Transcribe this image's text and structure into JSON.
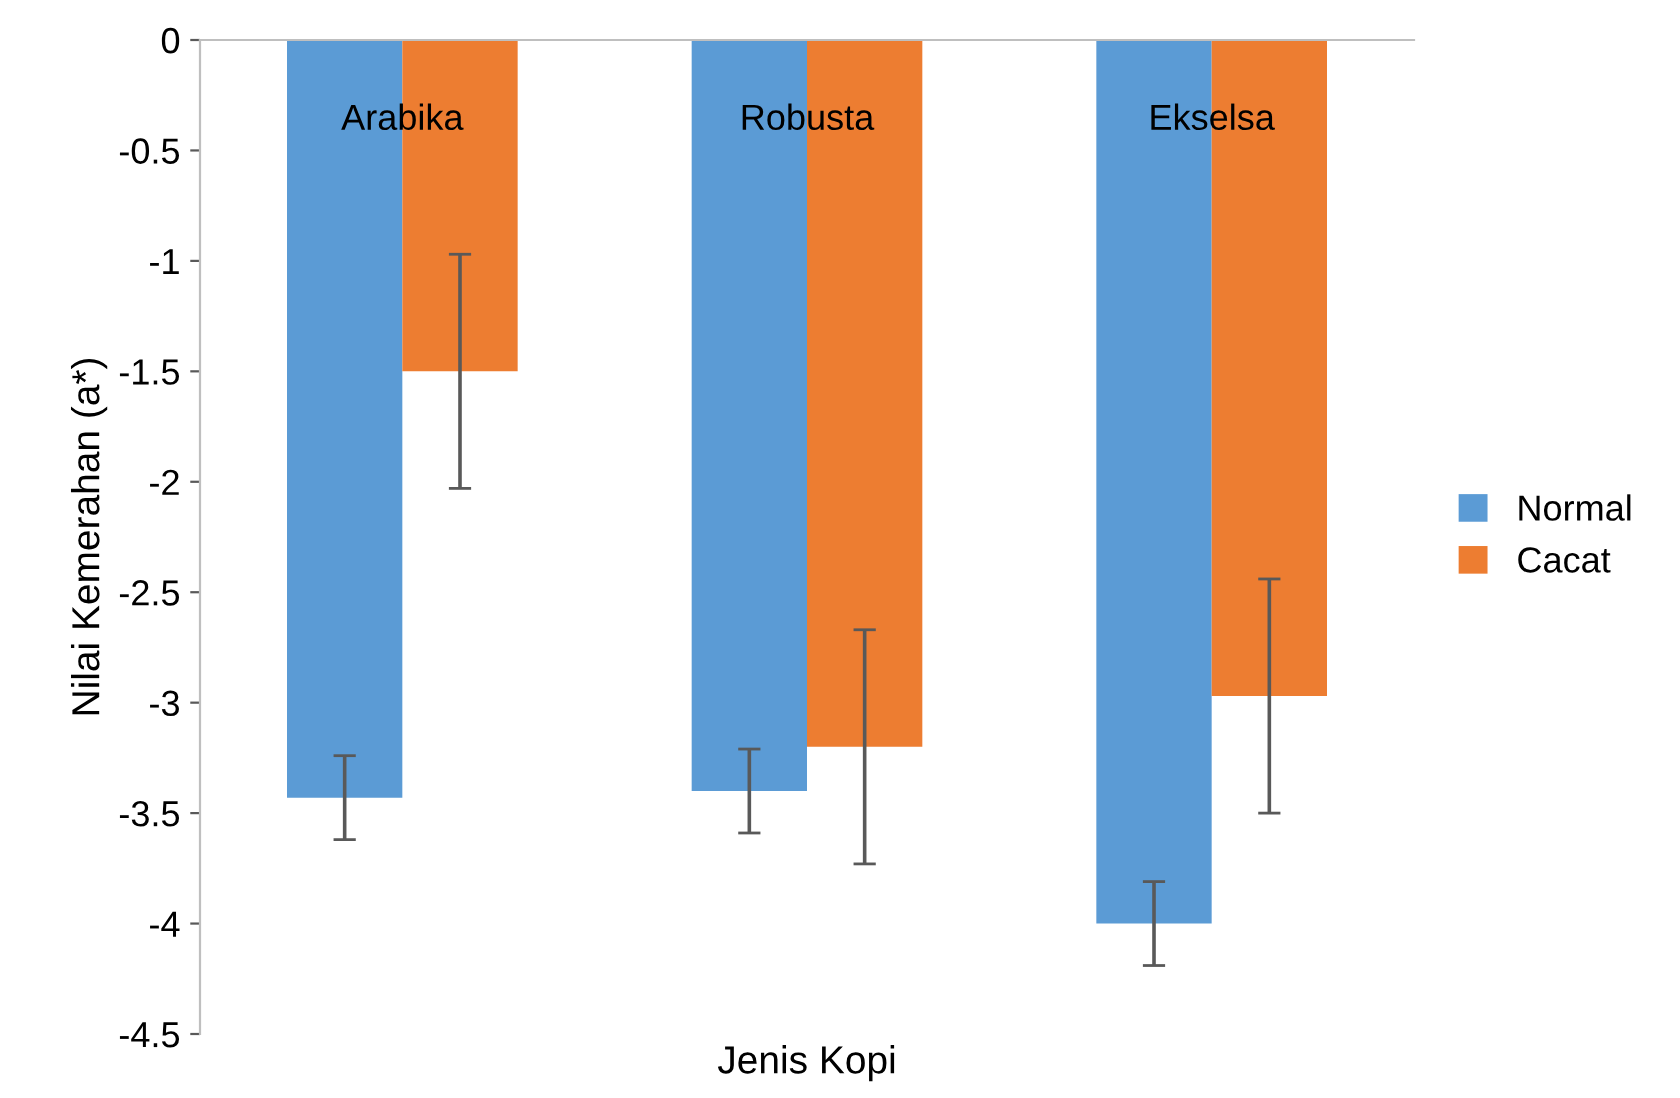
{
  "chart_data": {
    "type": "bar",
    "xlabel": "Jenis Kopi",
    "ylabel": "Nilai Kemerahan (a*)",
    "categories": [
      "Arabika",
      "Robusta",
      "Ekselsa"
    ],
    "series": [
      {
        "name": "Normal",
        "color": "#5b9bd5",
        "values": [
          -3.43,
          -3.4,
          -4.0
        ],
        "errors": [
          0.19,
          0.19,
          0.19
        ]
      },
      {
        "name": "Cacat",
        "color": "#ed7d31",
        "values": [
          -1.5,
          -3.2,
          -2.97
        ],
        "errors": [
          0.53,
          0.53,
          0.53
        ]
      }
    ],
    "ylim": [
      -4.5,
      0
    ],
    "yticks": [
      -4.5,
      -4,
      -3.5,
      -3,
      -2.5,
      -2,
      -1.5,
      -1,
      -0.5,
      0
    ],
    "grid": false,
    "legend": "right"
  }
}
